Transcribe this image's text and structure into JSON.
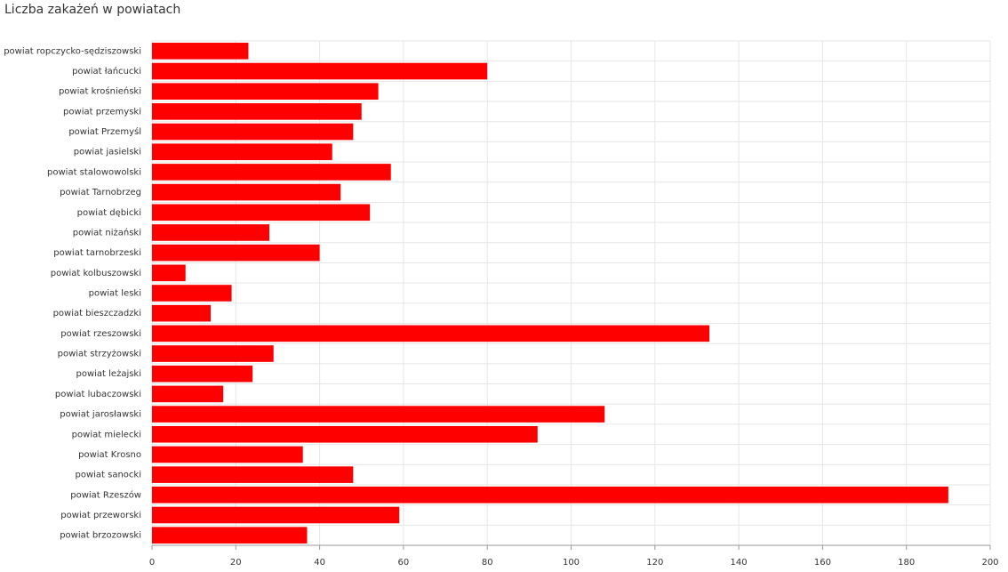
{
  "chart_data": {
    "type": "bar",
    "orientation": "horizontal",
    "title": "Liczba zakażeń w powiatach",
    "categories": [
      "powiat ropczycko-sędziszowski",
      "powiat łańcucki",
      "powiat krośnieński",
      "powiat przemyski",
      "powiat Przemyśl",
      "powiat jasielski",
      "powiat stalowowolski",
      "powiat Tarnobrzeg",
      "powiat dębicki",
      "powiat niżański",
      "powiat tarnobrzeski",
      "powiat kolbuszowski",
      "powiat leski",
      "powiat bieszczadzki",
      "powiat rzeszowski",
      "powiat strzyżowski",
      "powiat leżajski",
      "powiat lubaczowski",
      "powiat jarosławski",
      "powiat mielecki",
      "powiat Krosno",
      "powiat sanocki",
      "powiat Rzeszów",
      "powiat przeworski",
      "powiat brzozowski"
    ],
    "values": [
      23,
      80,
      54,
      50,
      48,
      43,
      57,
      45,
      52,
      28,
      40,
      8,
      19,
      14,
      133,
      29,
      24,
      17,
      108,
      92,
      36,
      48,
      190,
      59,
      37
    ],
    "color": "#ff0000",
    "xlim": [
      0,
      200
    ],
    "xticks": [
      0,
      20,
      40,
      60,
      80,
      100,
      120,
      140,
      160,
      180,
      200
    ],
    "grid": true
  }
}
